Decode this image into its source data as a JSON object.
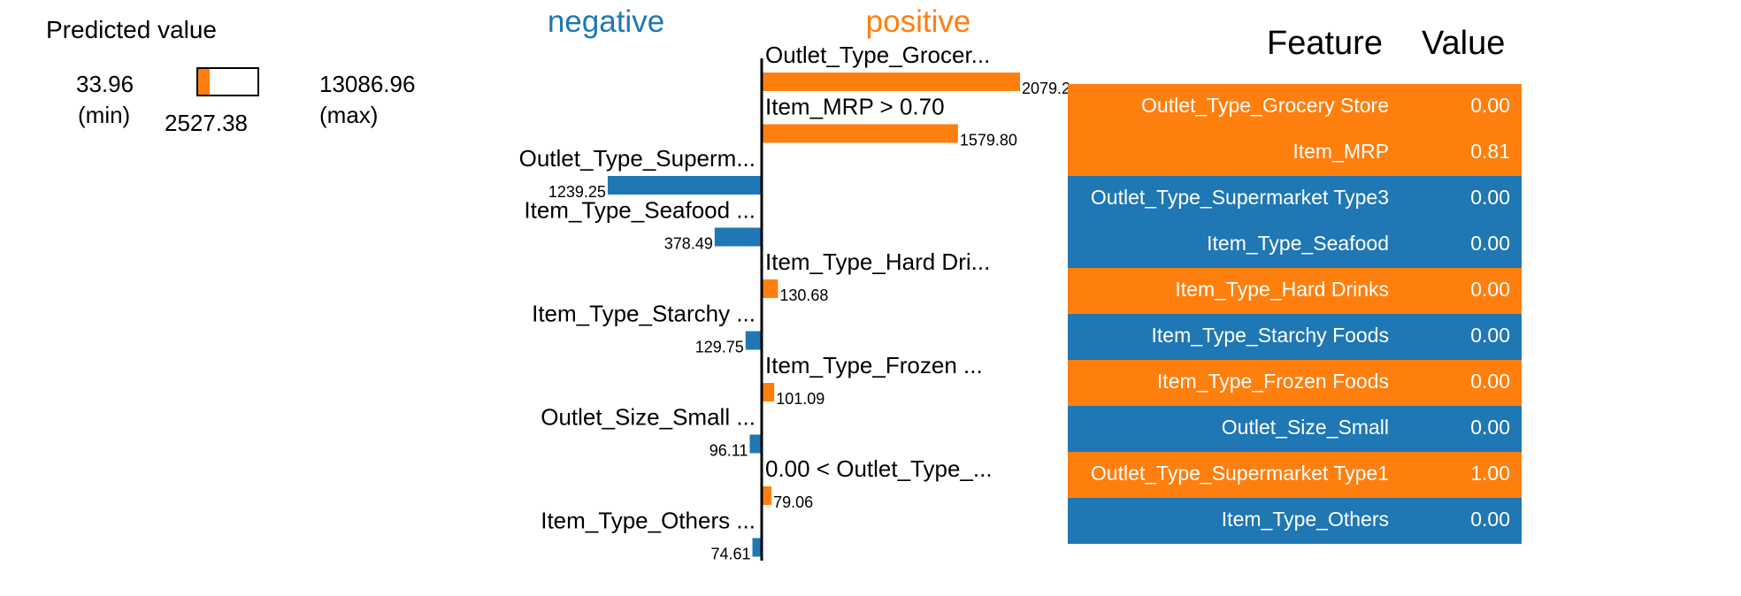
{
  "colors": {
    "negative": "#1f77b4",
    "positive": "#ff7f0e",
    "axis": "#000000"
  },
  "predicted": {
    "title": "Predicted value",
    "min_value": "33.96",
    "min_label": "(min)",
    "max_value": "13086.96",
    "max_label": "(max)",
    "value": "2527.38",
    "fraction": 0.19
  },
  "chart_data": {
    "type": "bar",
    "legend": {
      "negative": "negative",
      "positive": "positive"
    },
    "bars": [
      {
        "label": "Outlet_Type_Grocer...",
        "value": 2079.2,
        "value_label": "2079.2",
        "side": "positive"
      },
      {
        "label": "Item_MRP > 0.70",
        "value": 1579.8,
        "value_label": "1579.80",
        "side": "positive"
      },
      {
        "label": "Outlet_Type_Superm...",
        "value": 1239.25,
        "value_label": "1239.25",
        "side": "negative"
      },
      {
        "label": "Item_Type_Seafood ...",
        "value": 378.49,
        "value_label": "378.49",
        "side": "negative"
      },
      {
        "label": "Item_Type_Hard Dri...",
        "value": 130.68,
        "value_label": "130.68",
        "side": "positive"
      },
      {
        "label": "Item_Type_Starchy ...",
        "value": 129.75,
        "value_label": "129.75",
        "side": "negative"
      },
      {
        "label": "Item_Type_Frozen ...",
        "value": 101.09,
        "value_label": "101.09",
        "side": "positive"
      },
      {
        "label": "Outlet_Size_Small ...",
        "value": 96.11,
        "value_label": "96.11",
        "side": "negative"
      },
      {
        "label": "0.00 < Outlet_Type_...",
        "value": 79.06,
        "value_label": "79.06",
        "side": "positive"
      },
      {
        "label": "Item_Type_Others ...",
        "value": 74.61,
        "value_label": "74.61",
        "side": "negative"
      }
    ]
  },
  "table": {
    "header_feature": "Feature",
    "header_value": "Value",
    "rows": [
      {
        "feature": "Outlet_Type_Grocery Store",
        "value": "0.00",
        "color": "#ff7f0e"
      },
      {
        "feature": "Item_MRP",
        "value": "0.81",
        "color": "#ff7f0e"
      },
      {
        "feature": "Outlet_Type_Supermarket Type3",
        "value": "0.00",
        "color": "#1f77b4"
      },
      {
        "feature": "Item_Type_Seafood",
        "value": "0.00",
        "color": "#1f77b4"
      },
      {
        "feature": "Item_Type_Hard Drinks",
        "value": "0.00",
        "color": "#ff7f0e"
      },
      {
        "feature": "Item_Type_Starchy Foods",
        "value": "0.00",
        "color": "#1f77b4"
      },
      {
        "feature": "Item_Type_Frozen Foods",
        "value": "0.00",
        "color": "#ff7f0e"
      },
      {
        "feature": "Outlet_Size_Small",
        "value": "0.00",
        "color": "#1f77b4"
      },
      {
        "feature": "Outlet_Type_Supermarket Type1",
        "value": "1.00",
        "color": "#ff7f0e"
      },
      {
        "feature": "Item_Type_Others",
        "value": "0.00",
        "color": "#1f77b4"
      }
    ]
  }
}
